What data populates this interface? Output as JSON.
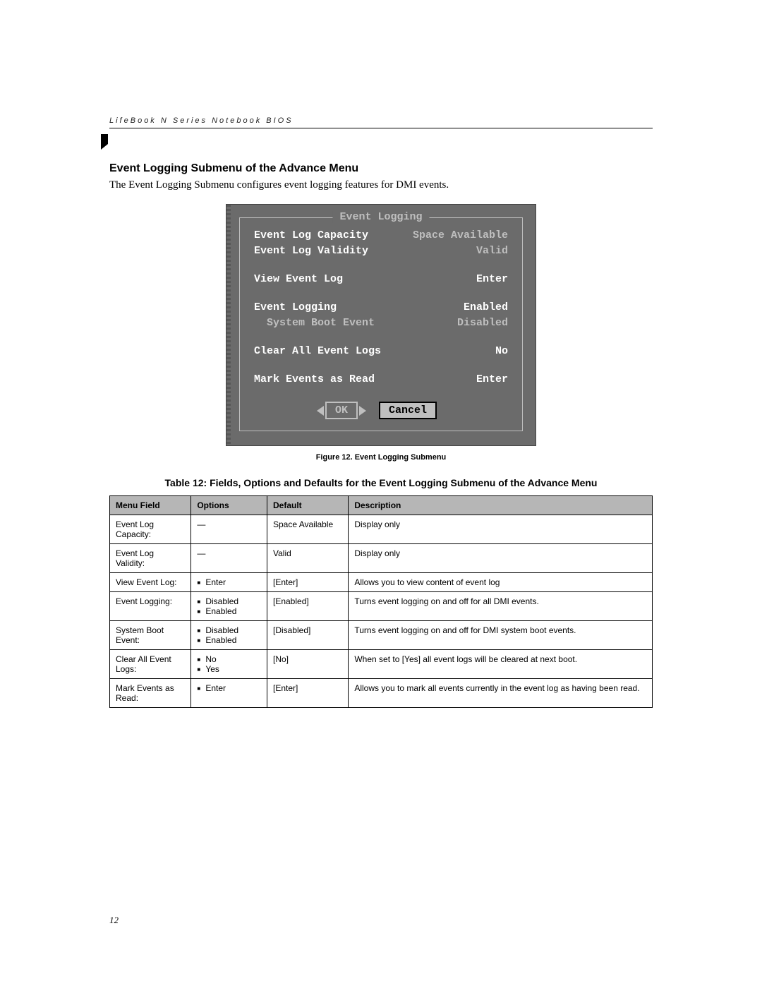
{
  "header": {
    "running_head": "LifeBook N Series Notebook BIOS"
  },
  "section": {
    "title": "Event Logging Submenu of the Advance Menu",
    "intro": "The Event Logging Submenu configures event logging features for DMI events."
  },
  "bios": {
    "legend": "Event Logging",
    "rows": [
      {
        "label": "Event Log Capacity",
        "label_color": "c-white",
        "value": "Space Available",
        "value_color": "c-grey",
        "gap_after": false
      },
      {
        "label": "Event Log Validity",
        "label_color": "c-white",
        "value": "Valid",
        "value_color": "c-grey",
        "gap_after": true
      },
      {
        "label": "View Event Log",
        "label_color": "c-white",
        "value": "Enter",
        "value_color": "c-white",
        "gap_after": true
      },
      {
        "label": "Event Logging",
        "label_color": "c-white",
        "value": "Enabled",
        "value_color": "c-white",
        "gap_after": false
      },
      {
        "label": "  System Boot Event",
        "label_color": "c-grey",
        "value": "Disabled",
        "value_color": "c-grey",
        "gap_after": true
      },
      {
        "label": "Clear All Event Logs",
        "label_color": "c-white",
        "value": "No",
        "value_color": "c-white",
        "gap_after": true
      },
      {
        "label": "Mark Events as Read",
        "label_color": "c-white",
        "value": "Enter",
        "value_color": "c-white",
        "gap_after": false
      }
    ],
    "ok_label": "OK",
    "cancel_label": "Cancel"
  },
  "figure_caption": "Figure 12.  Event Logging Submenu",
  "table_title": "Table 12: Fields, Options and Defaults for the Event Logging Submenu of the Advance Menu",
  "table": {
    "headers": [
      "Menu Field",
      "Options",
      "Default",
      "Description"
    ],
    "rows": [
      {
        "field": "Event Log Capacity:",
        "options": [
          "—"
        ],
        "options_plain": true,
        "default": "Space Available",
        "desc": "Display only"
      },
      {
        "field": "Event Log Validity:",
        "options": [
          "—"
        ],
        "options_plain": true,
        "default": "Valid",
        "desc": "Display only"
      },
      {
        "field": "View Event Log:",
        "options": [
          "Enter"
        ],
        "options_plain": false,
        "default": "[Enter]",
        "desc": "Allows you to view content of event log"
      },
      {
        "field": "Event Logging:",
        "options": [
          "Disabled",
          "Enabled"
        ],
        "options_plain": false,
        "default": "[Enabled]",
        "desc": "Turns event logging on and off for all DMI events."
      },
      {
        "field": "System Boot Event:",
        "options": [
          "Disabled",
          "Enabled"
        ],
        "options_plain": false,
        "default": "[Disabled]",
        "desc": "Turns event logging on and off for DMI system boot events."
      },
      {
        "field": "Clear All Event Logs:",
        "options": [
          "No",
          "Yes"
        ],
        "options_plain": false,
        "default": "[No]",
        "desc": "When set to [Yes] all event logs will be cleared at next boot."
      },
      {
        "field": "Mark Events as Read:",
        "options": [
          "Enter"
        ],
        "options_plain": false,
        "default": "[Enter]",
        "desc": "Allows you to mark all events currently in the event log as having been read."
      }
    ]
  },
  "page_number": "12"
}
